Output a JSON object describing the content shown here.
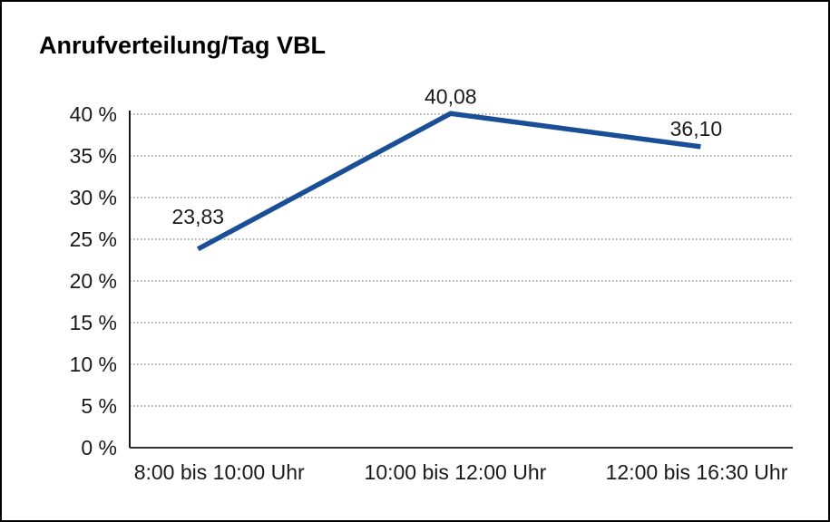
{
  "title": "Anrufverteilung/Tag VBL",
  "chart_data": {
    "type": "line",
    "title": "Anrufverteilung/Tag VBL",
    "categories": [
      "8:00 bis 10:00 Uhr",
      "10:00 bis 12:00 Uhr",
      "12:00 bis 16:30 Uhr"
    ],
    "series": [
      {
        "values": [
          23.83,
          40.08,
          36.1
        ],
        "data_labels": [
          "23,83",
          "40,08",
          "36,10"
        ]
      }
    ],
    "xlabel": "",
    "ylabel": "",
    "ylim": [
      0,
      40
    ],
    "ytick_step": 5,
    "ytick_labels": [
      "0 %",
      "5 %",
      "10 %",
      "15 %",
      "20 %",
      "25 %",
      "30 %",
      "35 %",
      "40 %"
    ],
    "grid": "horizontal-dotted",
    "legend": "none"
  },
  "colors": {
    "line": "#1a4e97",
    "grid": "#7f7f7f",
    "axis": "#1a1a1a",
    "baseline": "#333333",
    "text": "#1a1a1a",
    "background": "#ffffff",
    "frame_border": "#000000"
  }
}
